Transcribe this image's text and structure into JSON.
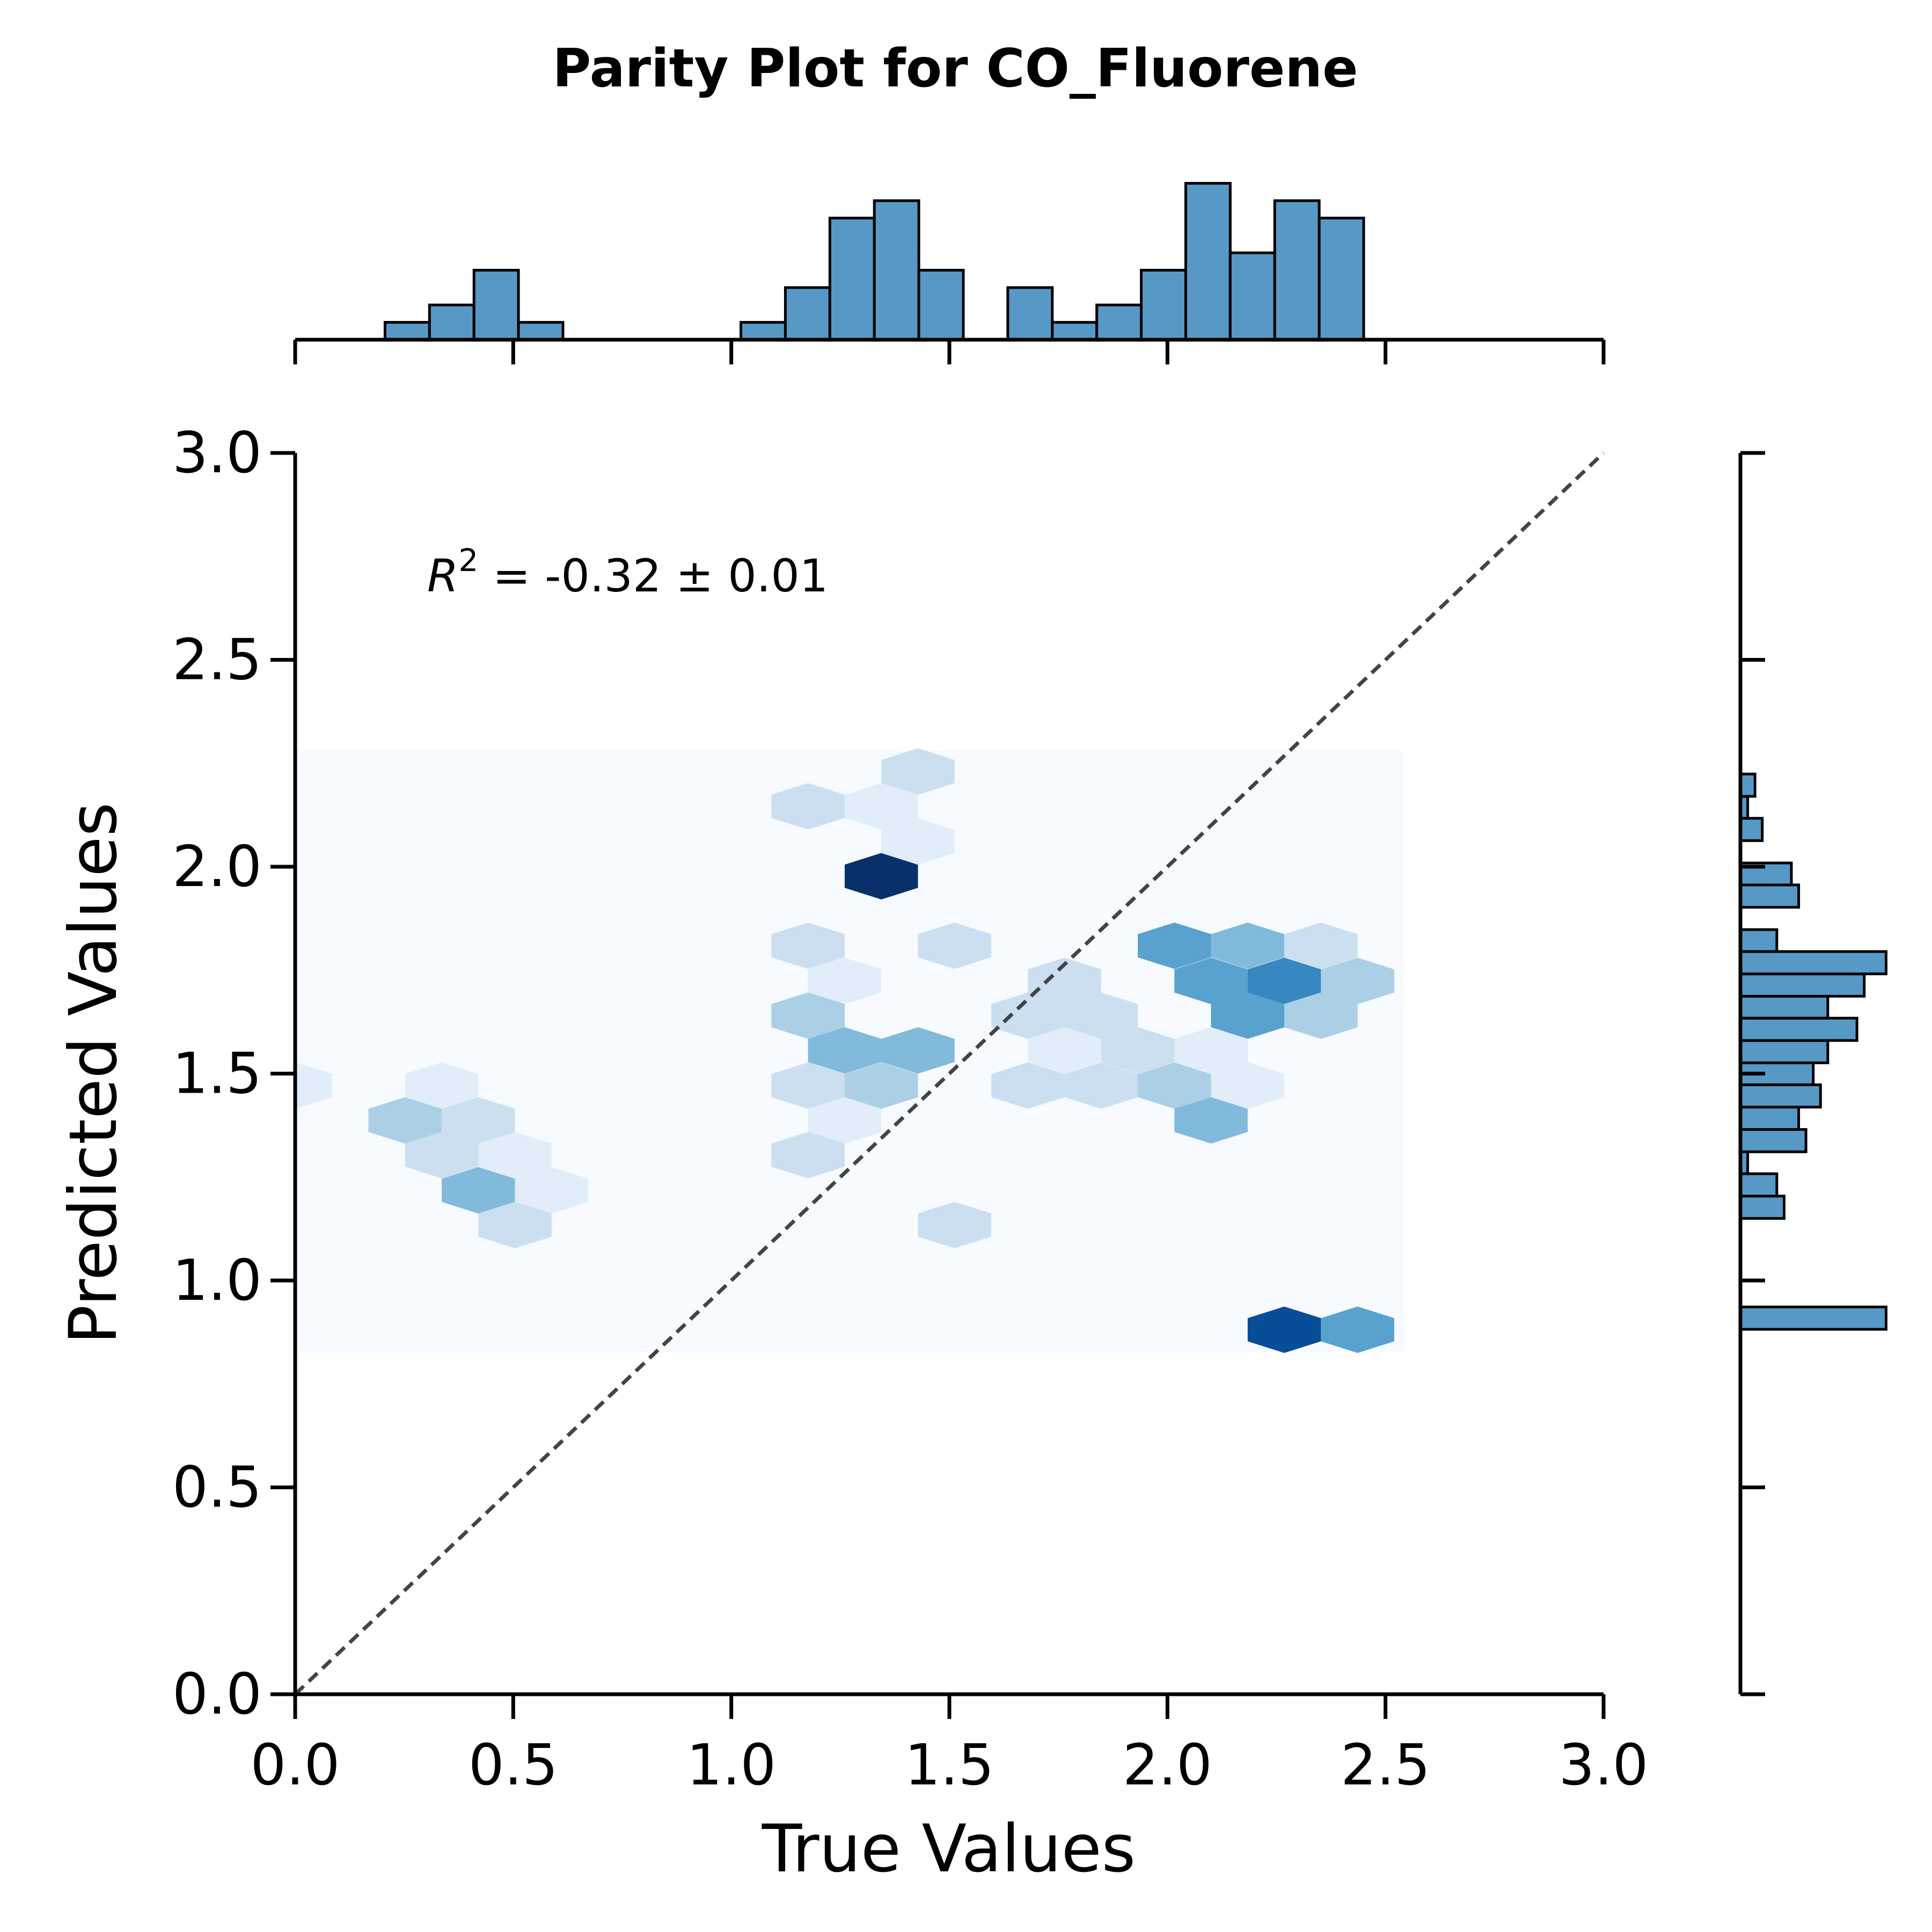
{
  "chart_data": [
    {
      "type": "hexbin",
      "title": "Parity Plot for CO_Fluorene",
      "xlabel": "True Values",
      "ylabel": "Predicted Values",
      "annotation_symbol": "R",
      "annotation_exponent": "2",
      "annotation_text": " = -0.32 ± 0.01",
      "cmap": "Blues",
      "xlim": [
        0,
        3
      ],
      "ylim": [
        0,
        3
      ],
      "xticks": [
        {
          "value": 0,
          "label": "0.0"
        },
        0.5,
        {
          "value": 1,
          "label": "1.0"
        },
        1.5,
        {
          "value": 2,
          "label": "2.0"
        },
        2.5,
        {
          "value": 3,
          "label": "3.0"
        }
      ],
      "yticks": [
        {
          "value": 0,
          "label": "0.0"
        },
        0.5,
        {
          "value": 1,
          "label": "1.0"
        },
        1.5,
        {
          "value": 2,
          "label": "2.0"
        },
        2.5,
        {
          "value": 3,
          "label": "3.0"
        }
      ],
      "x": [
        1.344,
        1.428,
        1.176,
        1.344,
        1.428,
        1.176,
        1.512,
        1.26,
        1.176,
        1.26,
        1.428,
        1.176,
        1.344,
        1.26,
        1.176,
        1.512,
        2.016,
        2.184,
        2.352,
        2.1,
        2.268,
        2.436,
        1.764,
        1.68,
        1.848,
        2.184,
        2.352,
        1.932,
        1.764,
        2.1,
        1.68,
        1.848,
        2.016,
        2.184,
        2.1,
        2.268,
        2.436,
        0.252,
        0.42,
        0.336,
        0.504,
        0.42,
        0.588,
        0.504,
        0.336,
        0
      ],
      "y": [
        1.977,
        2.23,
        2.146,
        2.146,
        2.061,
        1.809,
        1.809,
        1.724,
        1.64,
        1.556,
        1.556,
        1.471,
        1.471,
        1.387,
        1.303,
        1.134,
        1.809,
        1.809,
        1.809,
        1.724,
        1.724,
        1.724,
        1.724,
        1.64,
        1.64,
        1.64,
        1.64,
        1.556,
        1.556,
        1.556,
        1.471,
        1.471,
        1.471,
        1.471,
        1.387,
        0.881,
        0.881,
        1.387,
        1.387,
        1.303,
        1.303,
        1.218,
        1.218,
        1.134,
        1.471,
        1.471
      ],
      "values": [
        9,
        2,
        2,
        1,
        1,
        2,
        2,
        1,
        3,
        4,
        4,
        2,
        3,
        1,
        2,
        2,
        5,
        4,
        2,
        5,
        6,
        3,
        2,
        2,
        2,
        5,
        3,
        2,
        1,
        1,
        2,
        2,
        3,
        1,
        4,
        8,
        5,
        3,
        2,
        2,
        1,
        4,
        1,
        2,
        1,
        1
      ]
    },
    {
      "type": "histogram",
      "orientation": "vertical",
      "color": "#5799c6",
      "xlim": [
        0,
        3
      ],
      "ylim": [
        0,
        9.45
      ],
      "xticks": [
        0,
        0.5,
        1,
        1.5,
        2,
        2.5,
        3
      ],
      "bins": [
        0.206,
        0.308,
        0.41,
        0.512,
        0.614,
        0.716,
        0.818,
        0.92,
        1.022,
        1.124,
        1.226,
        1.328,
        1.43,
        1.532,
        1.634,
        1.736,
        1.838,
        1.94,
        2.042,
        2.144,
        2.246,
        2.348,
        2.45
      ],
      "values": [
        1,
        2,
        4,
        1,
        0,
        0,
        0,
        0,
        1,
        3,
        7,
        8,
        4,
        0,
        3,
        1,
        2,
        4,
        9,
        5,
        8,
        7
      ]
    },
    {
      "type": "histogram",
      "orientation": "horizontal",
      "color": "#5799c6",
      "xlim": [
        0,
        21
      ],
      "ylim": [
        0,
        3
      ],
      "yticks": [
        0,
        0.5,
        1,
        1.5,
        2,
        2.5,
        3
      ],
      "bins": [
        0.882,
        0.936,
        0.989,
        1.043,
        1.097,
        1.15,
        1.204,
        1.258,
        1.311,
        1.365,
        1.419,
        1.473,
        1.526,
        1.58,
        1.634,
        1.687,
        1.741,
        1.795,
        1.848,
        1.902,
        1.956,
        2.009,
        2.063,
        2.117,
        2.17,
        2.224
      ],
      "values": [
        20,
        0,
        0,
        0,
        0,
        6,
        5,
        1,
        9,
        8,
        11,
        10,
        12,
        16,
        12,
        17,
        20,
        5,
        0,
        8,
        7,
        0,
        3,
        1,
        2
      ]
    }
  ]
}
